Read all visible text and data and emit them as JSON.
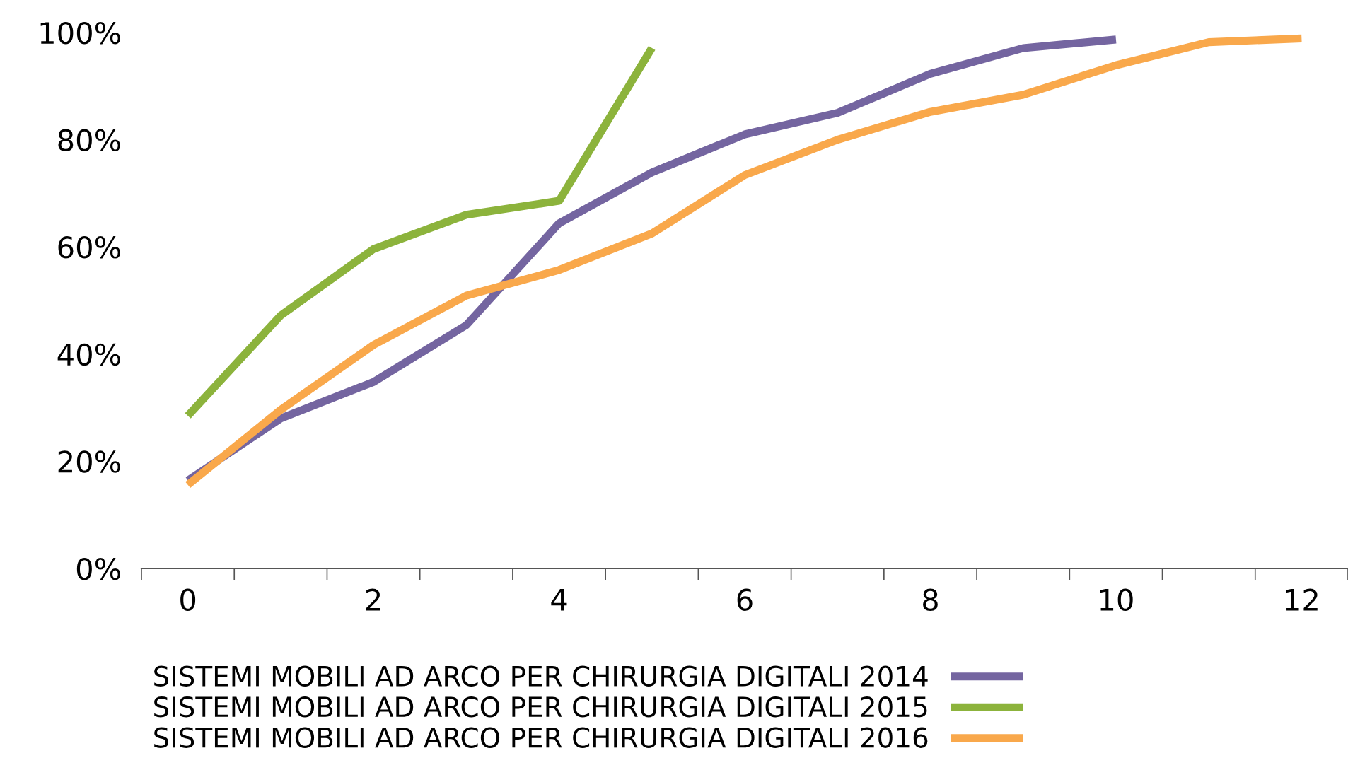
{
  "chart_data": {
    "type": "line",
    "categories": [
      "0",
      null,
      "2",
      null,
      "4",
      null,
      "6",
      null,
      "8",
      null,
      "10",
      null,
      "12"
    ],
    "ylim": [
      0,
      100
    ],
    "yticks": [
      {
        "value": 0,
        "label": "0%"
      },
      {
        "value": 20,
        "label": "20%"
      },
      {
        "value": 40,
        "label": "40%"
      },
      {
        "value": 60,
        "label": "60%"
      },
      {
        "value": 80,
        "label": "80%"
      },
      {
        "value": 100,
        "label": "100%"
      }
    ],
    "grid": false,
    "legend": "bottom",
    "marker": "none",
    "line_style": "solid",
    "series": [
      {
        "name": "SISTEMI MOBILI AD ARCO PER CHIRURGIA DIGITALI 2014",
        "color": "#7465a0",
        "values": [
          16.4,
          28,
          34.8,
          45.4,
          64.4,
          73.9,
          81,
          85,
          92.3,
          97.1,
          98.7,
          null,
          null
        ]
      },
      {
        "name": "SISTEMI MOBILI AD ARCO PER CHIRURGIA DIGITALI 2015",
        "color": "#8cb33c",
        "values": [
          28.5,
          47.2,
          59.6,
          66,
          68.6,
          97.1,
          null,
          null,
          null,
          null,
          null,
          null,
          null
        ]
      },
      {
        "name": "SISTEMI MOBILI AD ARCO PER CHIRURGIA DIGITALI 2016",
        "color": "#f9a84b",
        "values": [
          15.6,
          29.6,
          41.7,
          50.9,
          55.7,
          62.5,
          73.4,
          80,
          85.2,
          88.4,
          93.9,
          98.2,
          98.9
        ]
      }
    ]
  }
}
